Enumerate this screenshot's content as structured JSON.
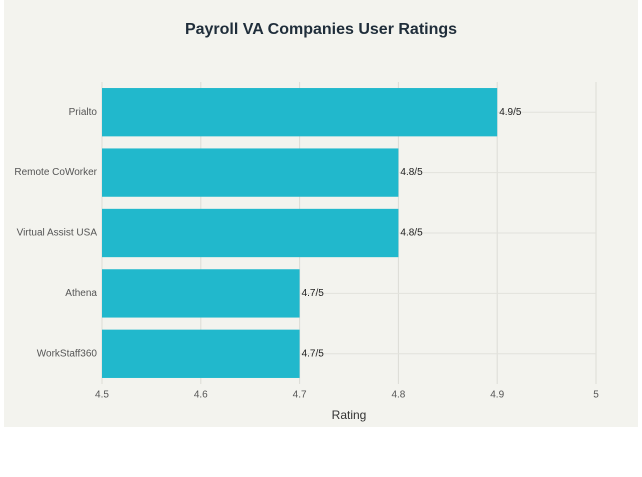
{
  "chart_data": {
    "type": "bar",
    "orientation": "horizontal",
    "title": "Payroll VA Companies User Ratings",
    "categories": [
      "Prialto",
      "Remote CoWorker",
      "Virtual Assist USA",
      "Athena",
      "WorkStaff360"
    ],
    "values": [
      4.9,
      4.8,
      4.8,
      4.7,
      4.7
    ],
    "value_labels": [
      "4.9/5",
      "4.8/5",
      "4.8/5",
      "4.7/5",
      "4.7/5"
    ],
    "color": "#21b8cc",
    "x_label": "Rating",
    "xlim": [
      4.5,
      5
    ],
    "xticks": [
      4.5,
      4.6,
      4.7,
      4.8,
      4.9,
      5
    ],
    "grid": true
  }
}
